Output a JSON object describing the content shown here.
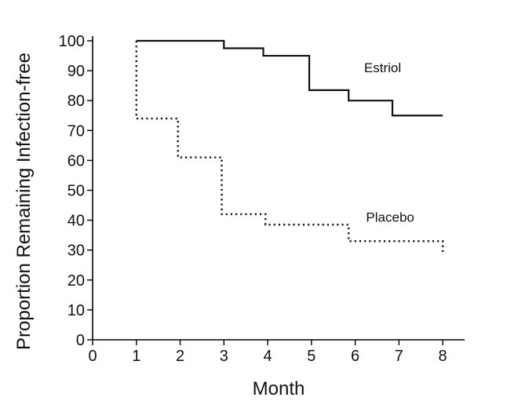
{
  "chart_data": {
    "type": "line",
    "title": "",
    "xlabel": "Month",
    "ylabel": "Proportion Remaining Infection-free",
    "xlim": [
      0,
      8.5
    ],
    "ylim": [
      0,
      100
    ],
    "x_ticks": [
      0,
      1,
      2,
      3,
      4,
      5,
      6,
      7,
      8
    ],
    "y_ticks": [
      0,
      10,
      20,
      30,
      40,
      50,
      60,
      70,
      80,
      90,
      100
    ],
    "grid": false,
    "step": true,
    "series": [
      {
        "name": "Estriol",
        "line_style": "solid",
        "color": "#111111",
        "points": [
          [
            1,
            100
          ],
          [
            3,
            100
          ],
          [
            3,
            97.5
          ],
          [
            3.9,
            97.5
          ],
          [
            3.9,
            95
          ],
          [
            4.95,
            95
          ],
          [
            4.95,
            83.5
          ],
          [
            5.85,
            83.5
          ],
          [
            5.85,
            80
          ],
          [
            6.85,
            80
          ],
          [
            6.85,
            75
          ],
          [
            8,
            75
          ]
        ]
      },
      {
        "name": "Placebo",
        "line_style": "dotted",
        "color": "#111111",
        "points": [
          [
            1,
            100
          ],
          [
            1,
            74
          ],
          [
            1.95,
            74
          ],
          [
            1.95,
            61
          ],
          [
            2.95,
            61
          ],
          [
            2.95,
            42
          ],
          [
            3.95,
            42
          ],
          [
            3.95,
            38.5
          ],
          [
            5.85,
            38.5
          ],
          [
            5.85,
            33
          ],
          [
            8,
            33
          ],
          [
            8,
            29
          ]
        ]
      }
    ],
    "annotations": [
      {
        "text": "Estriol",
        "series": "Estriol"
      },
      {
        "text": "Placebo",
        "series": "Placebo"
      }
    ]
  }
}
